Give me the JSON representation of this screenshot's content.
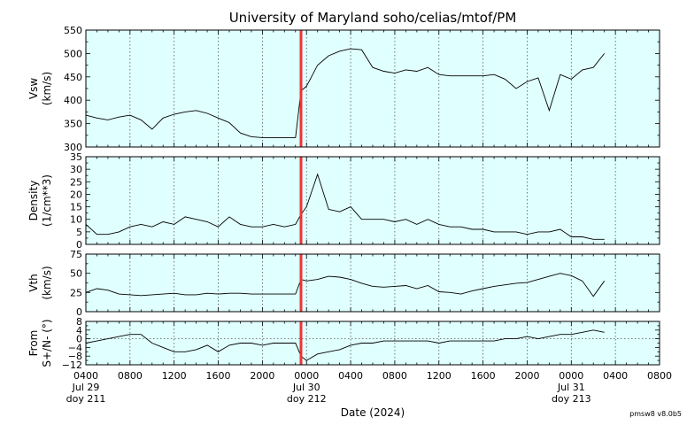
{
  "chart_data": {
    "type": "line",
    "title": "University of Maryland  soho/celias/mtof/PM",
    "xlabel": "Date (2024)",
    "version_label": "pmsw8 v8.0b5",
    "x_axis": {
      "range_hours": [
        4,
        56
      ],
      "tick_labels": [
        "0400",
        "0800",
        "1200",
        "1600",
        "2000",
        "0000",
        "0400",
        "0800",
        "1200",
        "1600",
        "2000",
        "0000",
        "0400",
        "0800"
      ],
      "day_labels": [
        {
          "date": "Jul 29",
          "doy": "doy 211"
        },
        {
          "date": "Jul 30",
          "doy": "doy 212"
        },
        {
          "date": "Jul 31",
          "doy": "doy 213"
        }
      ]
    },
    "event_marker_hour": 23.5,
    "panels": [
      {
        "ylabel_line1": "Vsw",
        "ylabel_line2": "(km/s)",
        "ylim": [
          300,
          550
        ],
        "yticks": [
          300,
          350,
          400,
          450,
          500,
          550
        ],
        "series": {
          "x": [
            4,
            5,
            6,
            7,
            8,
            9,
            10,
            11,
            12,
            13,
            14,
            15,
            16,
            17,
            18,
            19,
            20,
            21,
            22,
            23,
            23.5,
            24,
            25,
            26,
            27,
            28,
            29,
            30,
            31,
            32,
            33,
            34,
            35,
            36,
            37,
            38,
            39,
            40,
            41,
            42,
            43,
            44,
            45,
            46,
            47,
            48,
            49,
            50,
            51
          ],
          "y": [
            368,
            362,
            358,
            364,
            368,
            358,
            338,
            362,
            370,
            375,
            378,
            372,
            362,
            352,
            330,
            322,
            320,
            320,
            320,
            320,
            420,
            430,
            475,
            495,
            505,
            510,
            508,
            470,
            462,
            458,
            465,
            462,
            470,
            455,
            452,
            452,
            452,
            452,
            455,
            445,
            425,
            440,
            448,
            378,
            455,
            445,
            465,
            470,
            500
          ]
        }
      },
      {
        "ylabel_line1": "Density",
        "ylabel_line2": "(1/cm**3)",
        "ylim": [
          0,
          35
        ],
        "yticks": [
          0,
          5,
          10,
          15,
          20,
          25,
          30,
          35
        ],
        "series": {
          "x": [
            4,
            5,
            6,
            7,
            8,
            9,
            10,
            11,
            12,
            13,
            14,
            15,
            16,
            17,
            18,
            19,
            20,
            21,
            22,
            23,
            23.5,
            24,
            25,
            26,
            27,
            28,
            29,
            30,
            31,
            32,
            33,
            34,
            35,
            36,
            37,
            38,
            39,
            40,
            41,
            42,
            43,
            44,
            45,
            46,
            47,
            48,
            49,
            50,
            51
          ],
          "y": [
            8,
            4,
            4,
            5,
            7,
            8,
            7,
            9,
            8,
            11,
            10,
            9,
            7,
            11,
            8,
            7,
            7,
            8,
            7,
            8,
            12,
            15,
            28,
            14,
            13,
            15,
            10,
            10,
            10,
            9,
            10,
            8,
            10,
            8,
            7,
            7,
            6,
            6,
            5,
            5,
            5,
            4,
            5,
            5,
            6,
            3,
            3,
            2,
            2
          ]
        }
      },
      {
        "ylabel_line1": "Vth",
        "ylabel_line2": "(km/s)",
        "ylim": [
          0,
          75
        ],
        "yticks": [
          0,
          25,
          50,
          75
        ],
        "series": {
          "x": [
            4,
            5,
            6,
            7,
            8,
            9,
            10,
            11,
            12,
            13,
            14,
            15,
            16,
            17,
            18,
            19,
            20,
            21,
            22,
            23,
            23.5,
            24,
            25,
            26,
            27,
            28,
            29,
            30,
            31,
            32,
            33,
            34,
            35,
            36,
            37,
            38,
            39,
            40,
            41,
            42,
            43,
            44,
            45,
            46,
            47,
            48,
            49,
            50,
            51
          ],
          "y": [
            25,
            30,
            28,
            23,
            22,
            21,
            22,
            23,
            24,
            22,
            22,
            24,
            23,
            24,
            24,
            23,
            23,
            23,
            23,
            23,
            42,
            40,
            42,
            46,
            45,
            42,
            37,
            33,
            32,
            33,
            34,
            30,
            34,
            26,
            25,
            23,
            27,
            30,
            33,
            35,
            37,
            38,
            42,
            46,
            50,
            47,
            40,
            20,
            40
          ]
        }
      },
      {
        "ylabel_line1": "From",
        "ylabel_line2": "S+/N- (°)",
        "ylim": [
          -12,
          8
        ],
        "yticks": [
          -12,
          -8,
          -4,
          0,
          4,
          8
        ],
        "zero_line": true,
        "series": {
          "x": [
            4,
            5,
            6,
            7,
            8,
            9,
            10,
            11,
            12,
            13,
            14,
            15,
            16,
            17,
            18,
            19,
            20,
            21,
            22,
            23,
            23.5,
            24,
            25,
            26,
            27,
            28,
            29,
            30,
            31,
            32,
            33,
            34,
            35,
            36,
            37,
            38,
            39,
            40,
            41,
            42,
            43,
            44,
            45,
            46,
            47,
            48,
            49,
            50,
            51
          ],
          "y": [
            -2,
            -1,
            0,
            1,
            2,
            2,
            -2,
            -4,
            -6,
            -6,
            -5,
            -3,
            -6,
            -3,
            -2,
            -2,
            -3,
            -2,
            -2,
            -2,
            -8,
            -10,
            -7,
            -6,
            -5,
            -3,
            -2,
            -2,
            -1,
            -1,
            -1,
            -1,
            -1,
            -2,
            -1,
            -1,
            -1,
            -1,
            -1,
            0,
            0,
            1,
            0,
            1,
            2,
            2,
            3,
            4,
            3
          ]
        }
      }
    ]
  }
}
